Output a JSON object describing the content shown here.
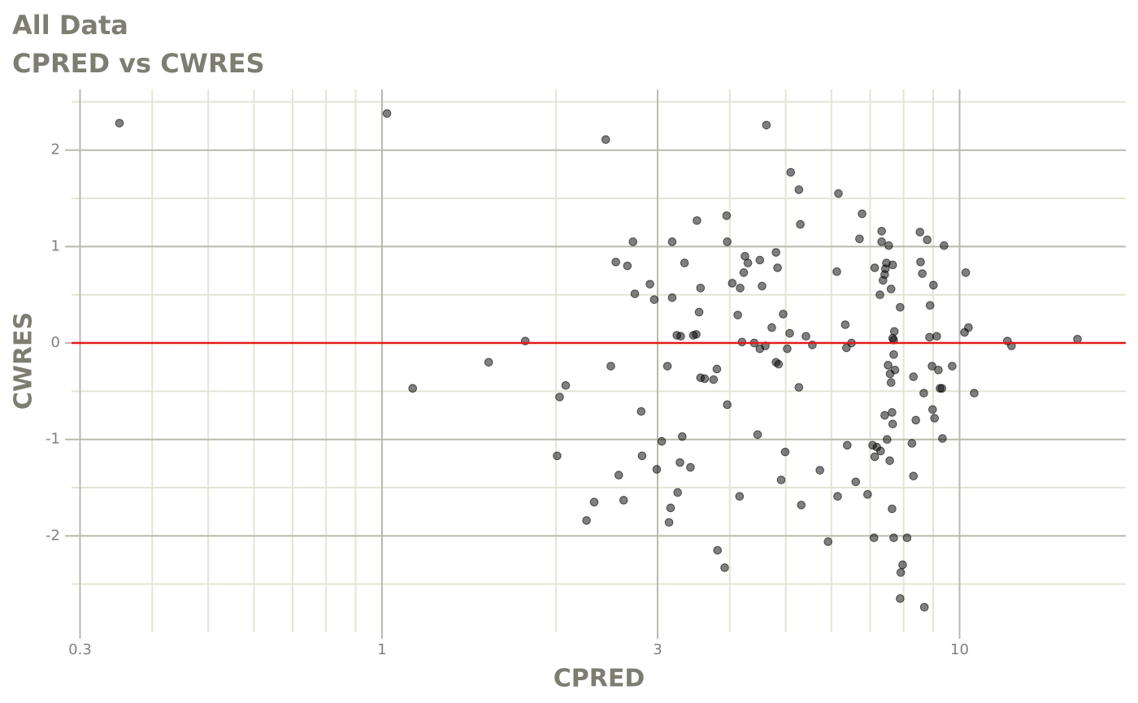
{
  "chart_data": {
    "type": "scatter",
    "title": "All Data",
    "subtitle": "CPRED vs CWRES",
    "x_label": "CPRED",
    "y_label": "CWRES",
    "xscale": "log",
    "xlim": [
      0.29,
      19.4
    ],
    "ylim": [
      -3.0,
      2.63
    ],
    "xticks": [
      0.3,
      1,
      3,
      10
    ],
    "yticks": [
      -2,
      -1,
      0,
      1,
      2
    ],
    "xminor": [
      0.4,
      0.5,
      0.6,
      0.7,
      0.8,
      0.9,
      2,
      4,
      5,
      6,
      7,
      8,
      9
    ],
    "yminor": [
      -2.5,
      -1.5,
      -0.5,
      0.5,
      1.5,
      2.5
    ],
    "grid": true,
    "color": "#000000",
    "hline": 0,
    "hline_color": "#e31a1c",
    "x": [
      0.351,
      1.02,
      1.13,
      1.53,
      1.77,
      2.01,
      2.03,
      2.08,
      2.26,
      2.33,
      2.44,
      2.49,
      2.54,
      2.57,
      2.62,
      2.66,
      2.72,
      2.74,
      2.81,
      2.82,
      2.91,
      2.96,
      2.99,
      3.05,
      3.12,
      3.14,
      3.16,
      3.18,
      3.18,
      3.24,
      3.25,
      3.28,
      3.29,
      3.31,
      3.34,
      3.42,
      3.46,
      3.5,
      3.51,
      3.54,
      3.56,
      3.56,
      3.62,
      3.75,
      3.8,
      3.81,
      3.92,
      3.95,
      3.96,
      3.96,
      4.04,
      4.13,
      4.16,
      4.17,
      4.2,
      4.23,
      4.25,
      4.3,
      4.41,
      4.47,
      4.51,
      4.51,
      4.55,
      4.61,
      4.63,
      4.73,
      4.81,
      4.81,
      4.84,
      4.86,
      4.91,
      4.95,
      4.99,
      5.03,
      5.08,
      5.1,
      5.27,
      5.27,
      5.3,
      5.32,
      5.42,
      5.56,
      5.73,
      5.92,
      6.13,
      6.15,
      6.17,
      6.34,
      6.37,
      6.39,
      6.5,
      6.61,
      6.71,
      6.78,
      6.93,
      7.07,
      7.11,
      7.13,
      7.13,
      7.19,
      7.28,
      7.3,
      7.33,
      7.33,
      7.37,
      7.42,
      7.42,
      7.44,
      7.47,
      7.49,
      7.52,
      7.54,
      7.57,
      7.58,
      7.61,
      7.61,
      7.64,
      7.64,
      7.66,
      7.66,
      7.66,
      7.69,
      7.69,
      7.69,
      7.71,
      7.73,
      7.89,
      7.89,
      7.91,
      7.97,
      8.11,
      8.27,
      8.32,
      8.32,
      8.4,
      8.54,
      8.56,
      8.62,
      8.67,
      8.69,
      8.79,
      8.87,
      8.89,
      8.96,
      8.98,
      9.01,
      9.05,
      9.13,
      9.19,
      9.25,
      9.32,
      9.34,
      9.4,
      9.71,
      10.2,
      10.25,
      10.36,
      10.6,
      12.1,
      12.3,
      16.0
    ],
    "y": [
      2.28,
      2.38,
      -0.47,
      -0.2,
      0.02,
      -1.17,
      -0.56,
      -0.44,
      -1.84,
      -1.65,
      2.11,
      -0.24,
      0.84,
      -1.37,
      -1.63,
      0.8,
      1.05,
      0.51,
      -0.71,
      -1.17,
      0.61,
      0.45,
      -1.31,
      -1.02,
      -0.24,
      -1.86,
      -1.71,
      0.47,
      1.05,
      0.08,
      -1.55,
      -1.24,
      0.07,
      -0.97,
      0.83,
      -1.29,
      0.08,
      0.09,
      1.27,
      0.32,
      0.57,
      -0.36,
      -0.37,
      -0.38,
      -0.27,
      -2.15,
      -2.33,
      1.32,
      -0.64,
      1.05,
      0.62,
      0.29,
      -1.59,
      0.57,
      0.01,
      0.73,
      0.9,
      0.83,
      0.0,
      -0.95,
      0.86,
      -0.06,
      0.59,
      -0.03,
      2.26,
      0.16,
      0.94,
      -0.2,
      0.78,
      -0.22,
      -1.42,
      0.3,
      -1.13,
      -0.06,
      0.1,
      1.77,
      1.59,
      -0.46,
      1.23,
      -1.68,
      0.07,
      -0.02,
      -1.32,
      -2.06,
      0.74,
      -1.59,
      1.55,
      0.19,
      -0.05,
      -1.06,
      0.0,
      -1.44,
      1.08,
      1.34,
      -1.57,
      -1.06,
      -2.02,
      -1.18,
      0.78,
      -1.08,
      0.5,
      -1.12,
      1.16,
      1.05,
      0.65,
      0.71,
      -0.75,
      0.77,
      0.83,
      -1.0,
      -0.23,
      1.01,
      -1.22,
      -0.32,
      -0.41,
      0.56,
      -0.72,
      -1.72,
      0.05,
      0.81,
      -0.84,
      -2.02,
      -0.12,
      0.03,
      0.12,
      -0.28,
      0.37,
      -2.65,
      -2.38,
      -2.3,
      -2.02,
      -1.04,
      -0.35,
      -1.38,
      -0.8,
      1.15,
      0.84,
      0.72,
      -0.52,
      -2.74,
      1.07,
      0.06,
      0.39,
      -0.24,
      -0.69,
      0.6,
      -0.78,
      0.07,
      -0.28,
      -0.47,
      -0.47,
      -0.99,
      1.01,
      -0.24,
      0.11,
      0.73,
      0.16,
      -0.52,
      0.02,
      -0.03,
      0.04
    ]
  }
}
